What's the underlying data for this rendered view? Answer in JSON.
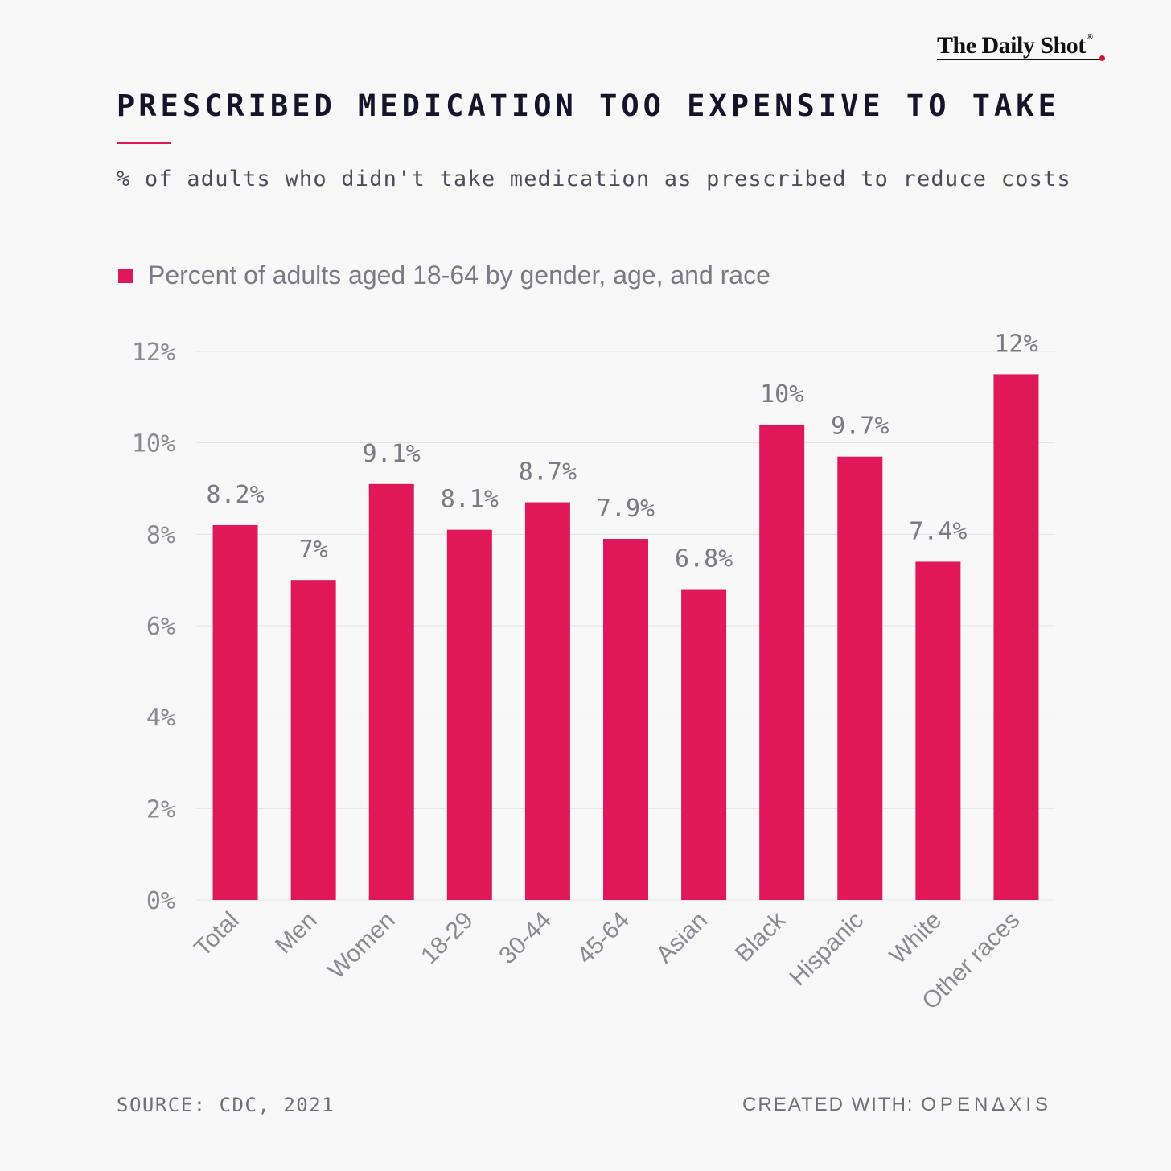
{
  "brand": {
    "name": "The Daily Shot",
    "mark": "®"
  },
  "header": {
    "title": "PRESCRIBED MEDICATION TOO EXPENSIVE TO TAKE",
    "subtitle": "% of adults who didn't take medication as prescribed to reduce costs"
  },
  "colors": {
    "bar": "#e0185a",
    "grid": "#e3e2e6",
    "text": "#6f6e7a"
  },
  "chart_data": {
    "type": "bar",
    "categories": [
      "Total",
      "Men",
      "Women",
      "18-29",
      "30-44",
      "45-64",
      "Asian",
      "Black",
      "Hispanic",
      "White",
      "Other races"
    ],
    "series": [
      {
        "name": "Percent of adults aged 18-64 by gender, age, and race",
        "values": [
          8.2,
          7.0,
          9.1,
          8.1,
          8.7,
          7.9,
          6.8,
          10.4,
          9.7,
          7.4,
          11.5
        ],
        "labels": [
          "8.2%",
          "7%",
          "9.1%",
          "8.1%",
          "8.7%",
          "7.9%",
          "6.8%",
          "10%",
          "9.7%",
          "7.4%",
          "12%"
        ]
      }
    ],
    "ylim": [
      0,
      12
    ],
    "yticks": [
      0,
      2,
      4,
      6,
      8,
      10,
      12
    ],
    "ytick_labels": [
      "0%",
      "2%",
      "4%",
      "6%",
      "8%",
      "10%",
      "12%"
    ],
    "grid": true,
    "legend_position": "top-left"
  },
  "footer": {
    "source": "SOURCE: CDC, 2021",
    "created_prefix": "CREATED WITH:",
    "created_brand": "OPENΔXIS"
  }
}
